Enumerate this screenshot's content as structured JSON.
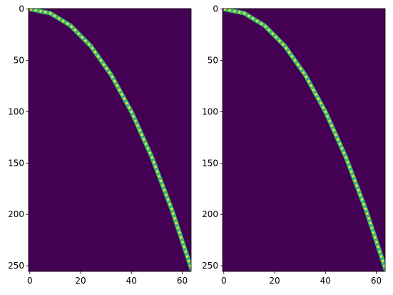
{
  "chart_data": [
    {
      "type": "image",
      "background": "#440154",
      "color": "#35b779",
      "highlight": "#fde725",
      "x": [
        0,
        8,
        16,
        24,
        32,
        40,
        48,
        56,
        64
      ],
      "values": [
        0,
        4,
        16,
        36,
        64,
        100,
        144,
        196,
        256
      ],
      "xlim": [
        -0.5,
        63.5
      ],
      "ylim": [
        255.5,
        -0.5
      ],
      "xticks": [
        0,
        20,
        40,
        60
      ],
      "yticks": [
        0,
        50,
        100,
        150,
        200,
        250
      ]
    },
    {
      "type": "image",
      "background": "#440154",
      "color": "#35b779",
      "highlight": "#fde725",
      "x": [
        0,
        8,
        16,
        24,
        32,
        40,
        48,
        56,
        64
      ],
      "values": [
        0,
        4,
        16,
        36,
        64,
        100,
        144,
        196,
        256
      ],
      "xlim": [
        -0.5,
        63.5
      ],
      "ylim": [
        255.5,
        -0.5
      ],
      "xticks": [
        0,
        20,
        40,
        60
      ],
      "yticks": [
        0,
        50,
        100,
        150,
        200,
        250
      ]
    }
  ]
}
